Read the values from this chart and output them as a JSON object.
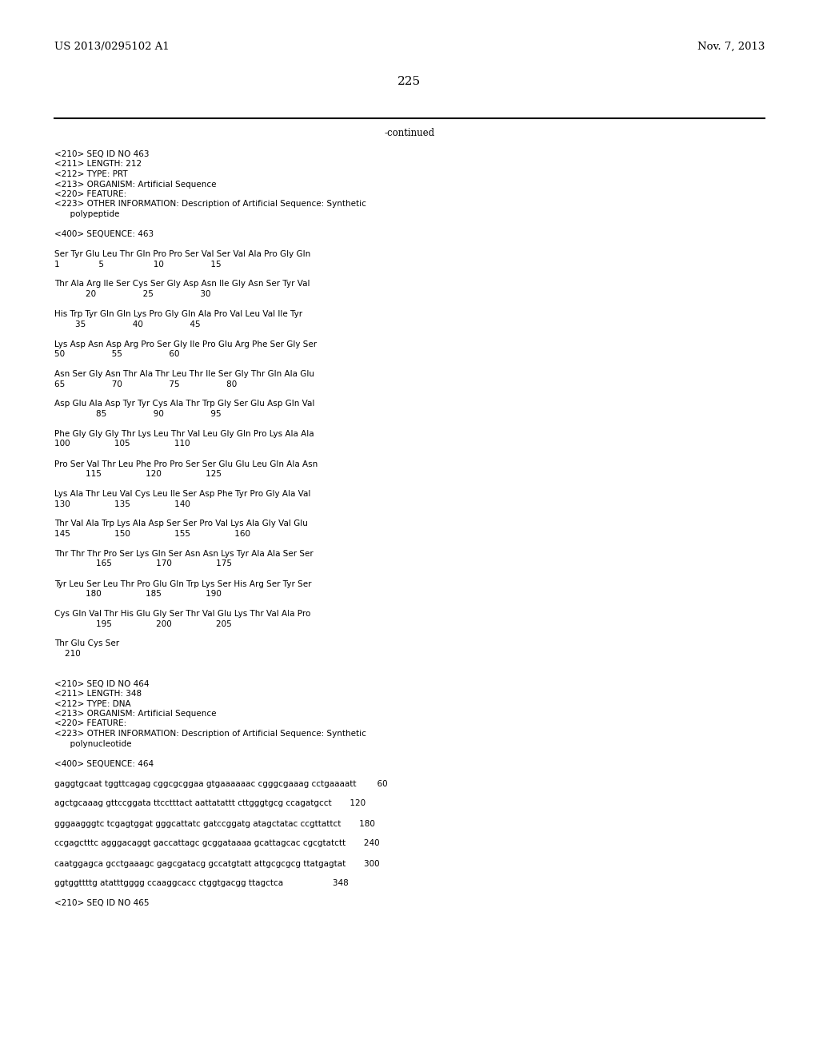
{
  "header_left": "US 2013/0295102 A1",
  "header_right": "Nov. 7, 2013",
  "page_number": "225",
  "continued_text": "-continued",
  "background_color": "#ffffff",
  "text_color": "#000000",
  "lines": [
    "<210> SEQ ID NO 463",
    "<211> LENGTH: 212",
    "<212> TYPE: PRT",
    "<213> ORGANISM: Artificial Sequence",
    "<220> FEATURE:",
    "<223> OTHER INFORMATION: Description of Artificial Sequence: Synthetic",
    "      polypeptide",
    "",
    "<400> SEQUENCE: 463",
    "",
    "Ser Tyr Glu Leu Thr Gln Pro Pro Ser Val Ser Val Ala Pro Gly Gln",
    "1               5                   10                  15",
    "",
    "Thr Ala Arg Ile Ser Cys Ser Gly Asp Asn Ile Gly Asn Ser Tyr Val",
    "            20                  25                  30",
    "",
    "His Trp Tyr Gln Gln Lys Pro Gly Gln Ala Pro Val Leu Val Ile Tyr",
    "        35                  40                  45",
    "",
    "Lys Asp Asn Asp Arg Pro Ser Gly Ile Pro Glu Arg Phe Ser Gly Ser",
    "50                  55                  60",
    "",
    "Asn Ser Gly Asn Thr Ala Thr Leu Thr Ile Ser Gly Thr Gln Ala Glu",
    "65                  70                  75                  80",
    "",
    "Asp Glu Ala Asp Tyr Tyr Cys Ala Thr Trp Gly Ser Glu Asp Gln Val",
    "                85                  90                  95",
    "",
    "Phe Gly Gly Gly Thr Lys Leu Thr Val Leu Gly Gln Pro Lys Ala Ala",
    "100                 105                 110",
    "",
    "Pro Ser Val Thr Leu Phe Pro Pro Ser Ser Glu Glu Leu Gln Ala Asn",
    "            115                 120                 125",
    "",
    "Lys Ala Thr Leu Val Cys Leu Ile Ser Asp Phe Tyr Pro Gly Ala Val",
    "130                 135                 140",
    "",
    "Thr Val Ala Trp Lys Ala Asp Ser Ser Pro Val Lys Ala Gly Val Glu",
    "145                 150                 155                 160",
    "",
    "Thr Thr Thr Pro Ser Lys Gln Ser Asn Asn Lys Tyr Ala Ala Ser Ser",
    "                165                 170                 175",
    "",
    "Tyr Leu Ser Leu Thr Pro Glu Gln Trp Lys Ser His Arg Ser Tyr Ser",
    "            180                 185                 190",
    "",
    "Cys Gln Val Thr His Glu Gly Ser Thr Val Glu Lys Thr Val Ala Pro",
    "                195                 200                 205",
    "",
    "Thr Glu Cys Ser",
    "    210",
    "",
    "",
    "<210> SEQ ID NO 464",
    "<211> LENGTH: 348",
    "<212> TYPE: DNA",
    "<213> ORGANISM: Artificial Sequence",
    "<220> FEATURE:",
    "<223> OTHER INFORMATION: Description of Artificial Sequence: Synthetic",
    "      polynucleotide",
    "",
    "<400> SEQUENCE: 464",
    "",
    "gaggtgcaat tggttcagag cggcgcggaa gtgaaaaaac cgggcgaaag cctgaaaatt        60",
    "",
    "agctgcaaag gttccggata ttcctttact aattatattt cttgggtgcg ccagatgcct       120",
    "",
    "gggaagggtc tcgagtggat gggcattatc gatccggatg atagctatac ccgttattct       180",
    "",
    "ccgagctttc agggacaggt gaccattagc gcggataaaa gcattagcac cgcgtatctt       240",
    "",
    "caatggagca gcctgaaagc gagcgatacg gccatgtatt attgcgcgcg ttatgagtat       300",
    "",
    "ggtggttttg atatttgggg ccaaggcacc ctggtgacgg ttagctca                   348",
    "",
    "<210> SEQ ID NO 465"
  ]
}
